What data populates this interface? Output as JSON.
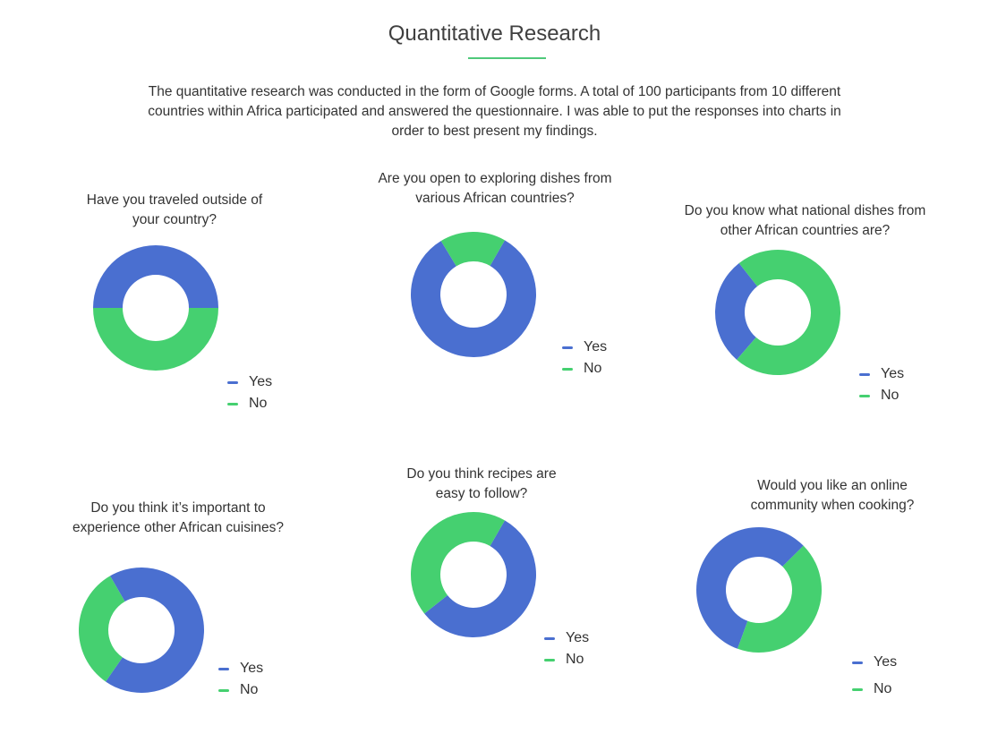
{
  "page": {
    "title": "Quantitative Research",
    "intro": "The quantitative research was conducted in the form of Google forms. A total of 100 participants from 10 different countries within Africa participated and answered the questionnaire. I was able to put the responses into charts in order to best present my findings.",
    "accent_color": "#4fc97a"
  },
  "colors": {
    "yes": "#4a6fd0",
    "no": "#45d070"
  },
  "chart_data": [
    {
      "type": "pie",
      "title": "Have you traveled outside of your country?",
      "categories": [
        "Yes",
        "No"
      ],
      "values": [
        50,
        50
      ],
      "legend": "bottom-right"
    },
    {
      "type": "pie",
      "title": "Are you open to exploring dishes from various African countries?",
      "categories": [
        "Yes",
        "No"
      ],
      "values": [
        83,
        17
      ],
      "legend": "bottom-right"
    },
    {
      "type": "pie",
      "title": "Do you know what national dishes from other African countries are?",
      "categories": [
        "Yes",
        "No"
      ],
      "values": [
        28,
        72
      ],
      "legend": "bottom-right"
    },
    {
      "type": "pie",
      "title": "Do you think it’s important to experience other African cuisines?",
      "categories": [
        "Yes",
        "No"
      ],
      "values": [
        68,
        32
      ],
      "legend": "bottom-right"
    },
    {
      "type": "pie",
      "title": "Do you think recipes are easy to follow?",
      "categories": [
        "Yes",
        "No"
      ],
      "values": [
        56,
        44
      ],
      "legend": "bottom-right"
    },
    {
      "type": "pie",
      "title": "Would you like an online community when cooking?",
      "categories": [
        "Yes",
        "No"
      ],
      "values": [
        57,
        43
      ],
      "legend": "bottom-right"
    }
  ]
}
